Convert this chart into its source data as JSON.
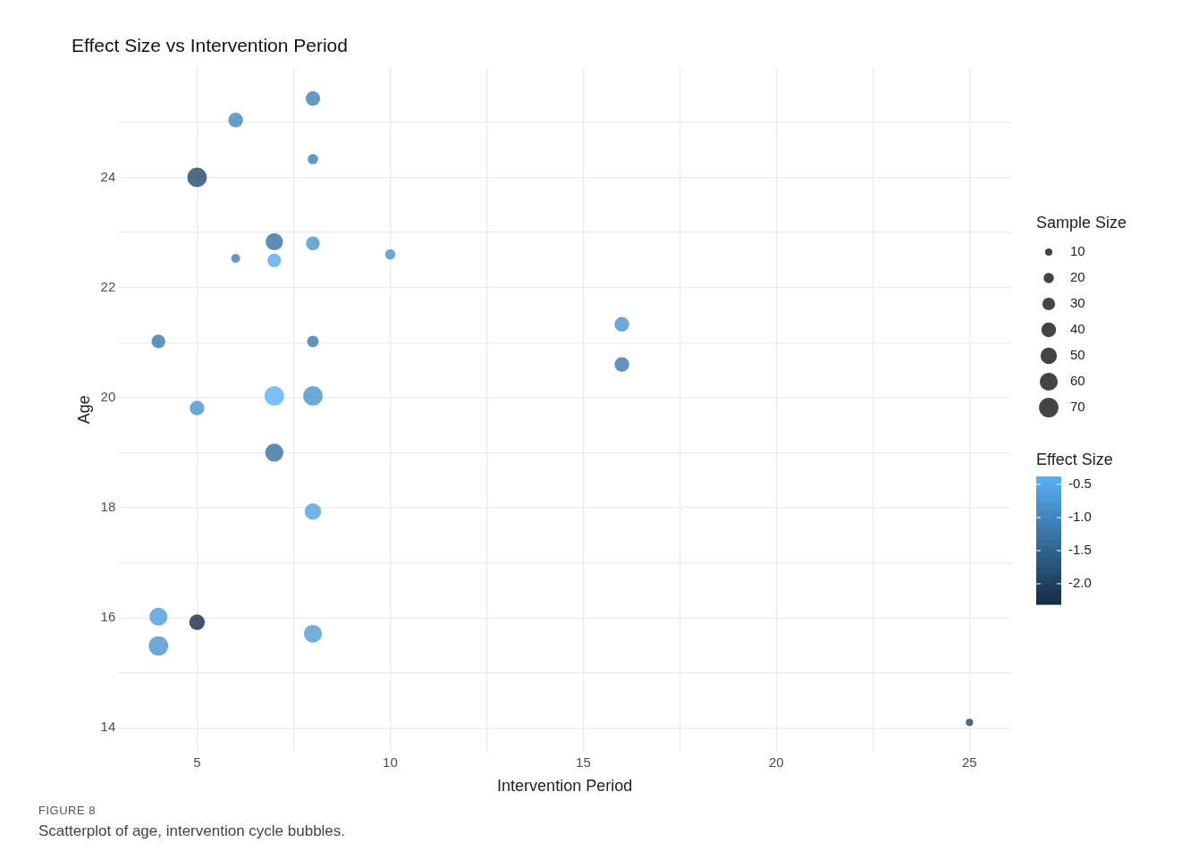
{
  "chart_data": {
    "type": "bubble",
    "title": "Effect Size vs Intervention Period",
    "xlabel": "Intervention Period",
    "ylabel": "Age",
    "x": [
      8,
      6,
      8,
      5,
      7,
      8,
      6,
      7,
      10,
      16,
      16,
      4,
      8,
      7,
      8,
      5,
      7,
      8,
      4,
      5,
      8,
      4,
      25
    ],
    "values": [
      25.43,
      25.04,
      24.33,
      24.0,
      22.83,
      22.8,
      22.53,
      22.49,
      22.6,
      21.33,
      20.6,
      21.02,
      21.02,
      20.03,
      20.03,
      19.81,
      19.0,
      17.93,
      16.02,
      15.92,
      15.71,
      15.49,
      14.1
    ],
    "sizes": [
      40,
      40,
      20,
      70,
      55,
      35,
      15,
      35,
      20,
      40,
      40,
      35,
      25,
      70,
      70,
      40,
      60,
      50,
      60,
      45,
      60,
      70,
      10
    ],
    "cvalues": [
      -1.1,
      -1.0,
      -1.1,
      -1.9,
      -1.3,
      -0.8,
      -1.1,
      -0.5,
      -0.8,
      -0.8,
      -1.2,
      -1.2,
      -1.2,
      -0.38,
      -0.8,
      -0.8,
      -1.3,
      -0.6,
      -0.7,
      -2.31,
      -0.7,
      -0.8,
      -1.9
    ],
    "size_legend": [
      10,
      20,
      30,
      40,
      50,
      60,
      70
    ],
    "legend_title": "Sample Size",
    "clabel": "Effect Size",
    "clim": [
      -2.31,
      -0.38
    ],
    "cticks": [
      -0.5,
      {
        "value": -1,
        "label": "-1.0"
      },
      -1.5,
      {
        "value": -2,
        "label": "-2.0"
      }
    ],
    "xlim": [
      2.96,
      26.08
    ],
    "ylim": [
      13.56,
      26.0
    ],
    "xticks": [
      5,
      {
        "value": 7.5,
        "label": null
      },
      10,
      {
        "value": 12.5,
        "label": null
      },
      15,
      {
        "value": 17.5,
        "label": null
      },
      20,
      {
        "value": 22.5,
        "label": null
      },
      25
    ],
    "yticks": [
      14,
      {
        "value": 15,
        "label": null
      },
      16,
      {
        "value": 17,
        "label": null
      },
      18,
      {
        "value": 19,
        "label": null
      },
      20,
      {
        "value": 21,
        "label": null
      },
      22,
      {
        "value": 23,
        "label": null
      },
      24,
      {
        "value": 25,
        "label": null
      }
    ],
    "grid": true,
    "annotations": [
      "FIGURE 8",
      "Scatterplot of age, intervention cycle bubbles."
    ]
  }
}
